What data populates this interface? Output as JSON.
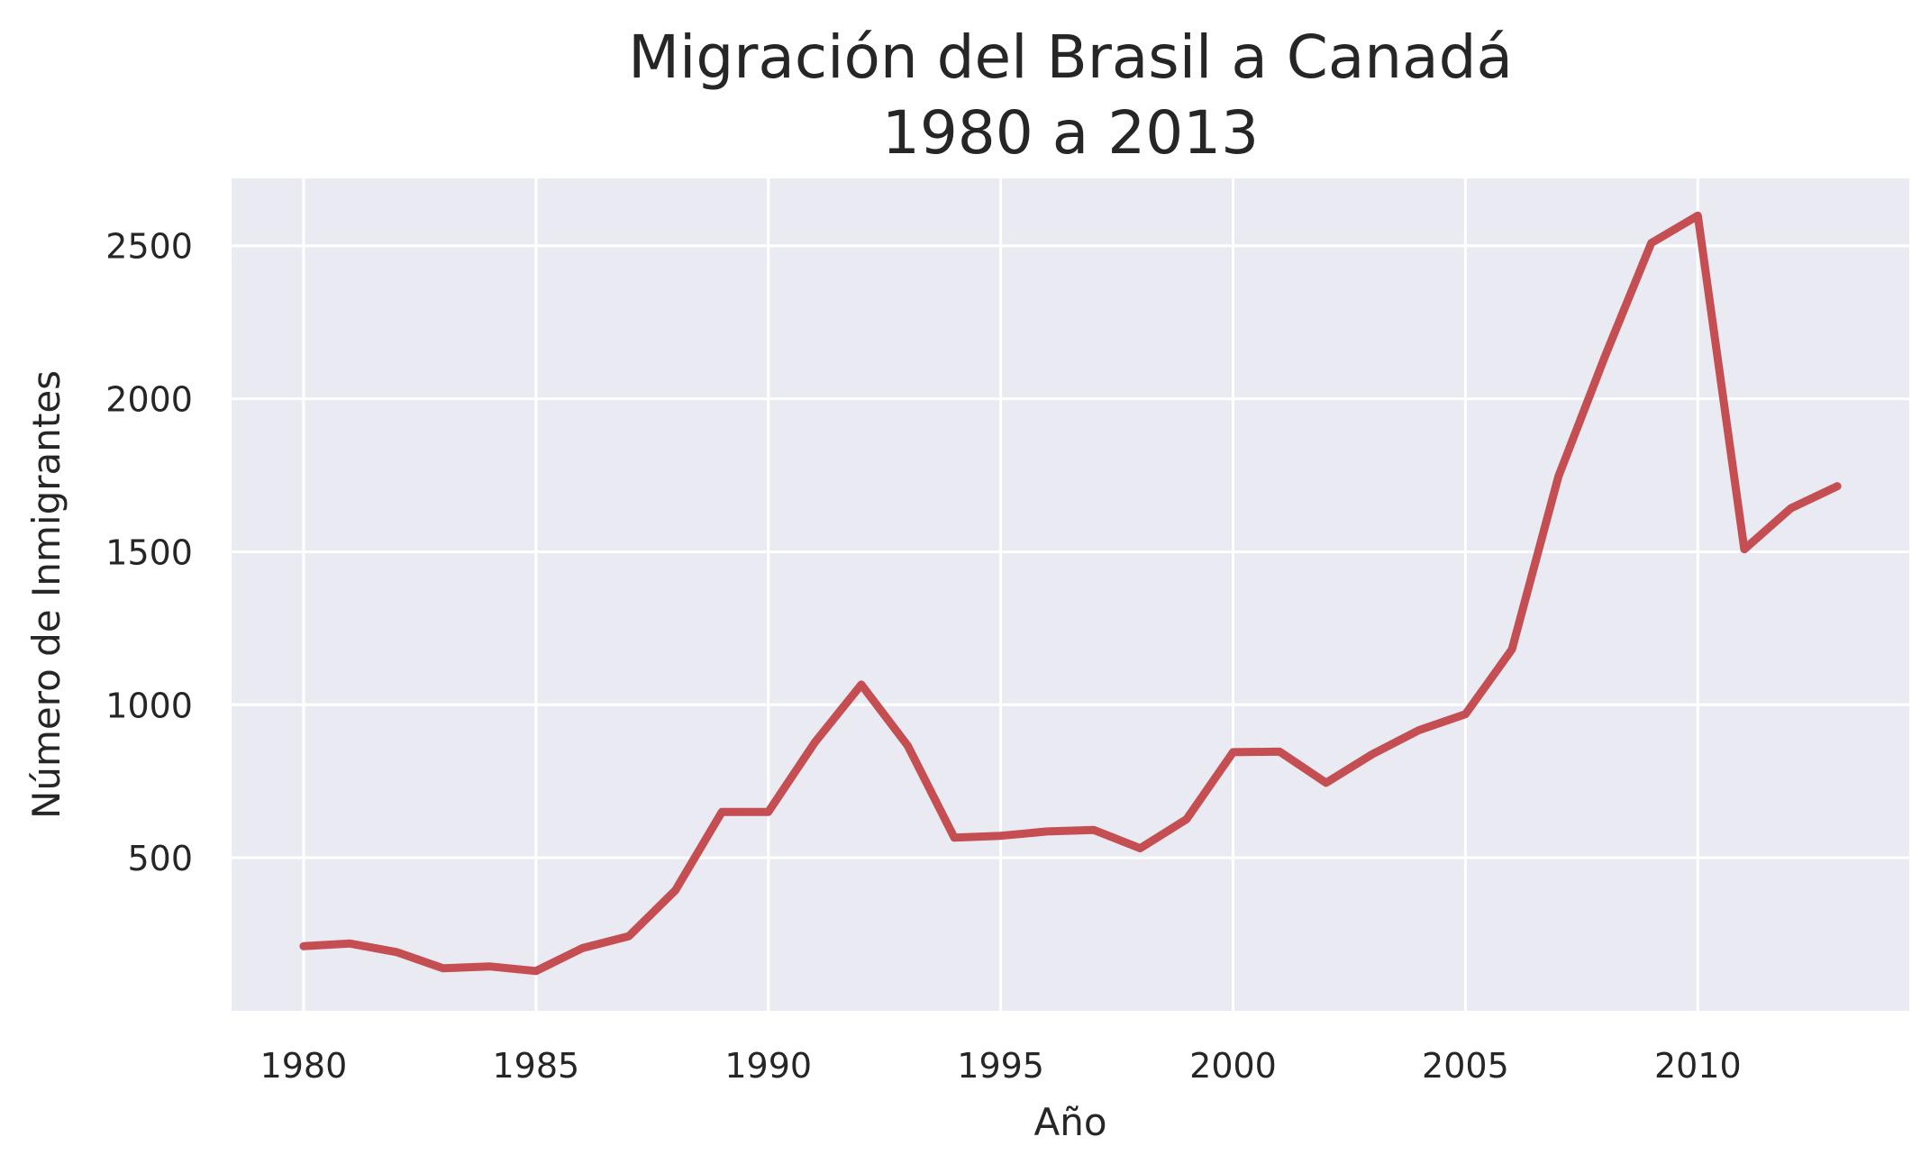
{
  "chart_data": {
    "type": "line",
    "title": "Migración del Brasil a Canadá\n1980 a 2013",
    "xlabel": "Año",
    "ylabel": "Número de Inmigrantes",
    "xlim": [
      1978.45,
      2014.55
    ],
    "ylim": [
      0,
      2720
    ],
    "xticks": [
      1980,
      1985,
      1990,
      1995,
      2000,
      2005,
      2010
    ],
    "yticks": [
      500,
      1000,
      1500,
      2000,
      2500
    ],
    "grid": true,
    "series": [
      {
        "color": "#c44e52",
        "x": [
          1980,
          1981,
          1982,
          1983,
          1984,
          1985,
          1986,
          1987,
          1988,
          1989,
          1990,
          1991,
          1992,
          1993,
          1994,
          1995,
          1996,
          1997,
          1998,
          1999,
          2000,
          2001,
          2002,
          2003,
          2004,
          2005,
          2006,
          2007,
          2008,
          2009,
          2010,
          2011,
          2012,
          2013
        ],
        "y": [
          211,
          220,
          192,
          139,
          145,
          130,
          205,
          244,
          394,
          650,
          650,
          877,
          1066,
          866,
          566,
          572,
          586,
          591,
          531,
          626,
          845,
          847,
          745,
          839,
          917,
          969,
          1181,
          1746,
          2138,
          2509,
          2598,
          1508,
          1642,
          1714
        ]
      }
    ]
  }
}
